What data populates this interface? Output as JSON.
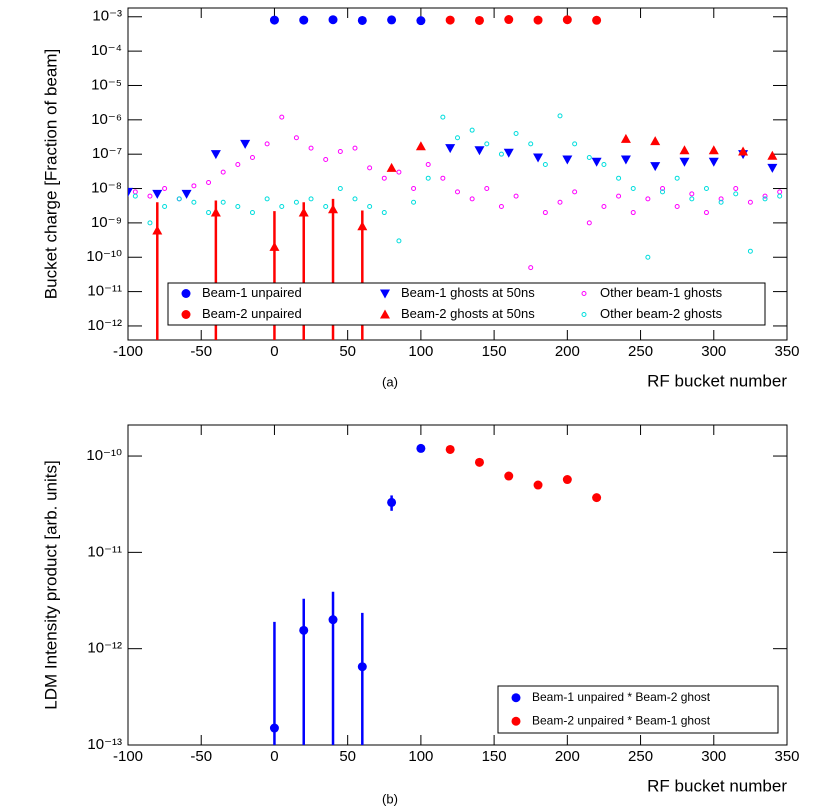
{
  "chart_data": [
    {
      "type": "scatter",
      "caption": "(a)",
      "x_label": "RF bucket number",
      "y_label": "Bucket charge [Fraction of beam]",
      "log_y": true,
      "xlim": [
        -100,
        350
      ],
      "ylim": [
        3.9e-13,
        0.0018
      ],
      "xticks": [
        -100,
        -50,
        0,
        50,
        100,
        150,
        200,
        250,
        300,
        350
      ],
      "yticks": [
        {
          "value": 1e-12,
          "label": "10⁻¹²"
        },
        {
          "value": 1e-11,
          "label": "10⁻¹¹"
        },
        {
          "value": 1e-10,
          "label": "10⁻¹⁰"
        },
        {
          "value": 1e-09,
          "label": "10⁻⁹"
        },
        {
          "value": 1e-08,
          "label": "10⁻⁸"
        },
        {
          "value": 1e-07,
          "label": "10⁻⁷"
        },
        {
          "value": 1e-06,
          "label": "10⁻⁶"
        },
        {
          "value": 1e-05,
          "label": "10⁻⁵"
        },
        {
          "value": 0.0001,
          "label": "10⁻⁴"
        },
        {
          "value": 0.001,
          "label": "10⁻³"
        }
      ],
      "legend": "bottom",
      "series": [
        {
          "name": "Beam-1 unpaired",
          "color": "#0000ff",
          "marker": "circle",
          "x": [
            0,
            20,
            40,
            60,
            80,
            100
          ],
          "values": [
            0.0008,
            0.0008,
            0.00082,
            0.00078,
            0.00081,
            0.00077
          ]
        },
        {
          "name": "Beam-2 unpaired",
          "color": "#ff0000",
          "marker": "circle",
          "x": [
            120,
            140,
            160,
            180,
            200,
            220
          ],
          "values": [
            0.0008,
            0.00078,
            0.00083,
            0.0008,
            0.00082,
            0.00079
          ]
        },
        {
          "name": "Beam-1 ghosts at 50ns",
          "color": "#0000ff",
          "marker": "down",
          "x": [
            -100,
            -80,
            -60,
            -40,
            -20,
            120,
            140,
            160,
            180,
            200,
            220,
            240,
            260,
            280,
            300,
            320,
            340
          ],
          "values": [
            8e-09,
            7e-09,
            7e-09,
            1e-07,
            2e-07,
            1.5e-07,
            1.3e-07,
            1.1e-07,
            8e-08,
            7e-08,
            6e-08,
            7e-08,
            4.5e-08,
            6e-08,
            6e-08,
            1e-07,
            4e-08
          ]
        },
        {
          "name": "Beam-2 ghosts at 50ns",
          "color": "#ff0000",
          "marker": "up",
          "x": [
            -80,
            -40,
            0,
            20,
            40,
            60,
            80,
            100,
            240,
            260,
            280,
            300,
            320,
            340
          ],
          "values": [
            6e-10,
            2e-09,
            2e-10,
            2e-09,
            2.5e-09,
            8e-10,
            4e-08,
            1.7e-07,
            2.8e-07,
            2.4e-07,
            1.3e-07,
            1.3e-07,
            1.2e-07,
            9e-08
          ],
          "errors": [
            3.4e-09,
            2.5e-09,
            2e-09,
            2e-09,
            2.5e-09,
            1.5e-09,
            0,
            0,
            0,
            0,
            0,
            0,
            0,
            0
          ]
        },
        {
          "name": "Other beam-1 ghosts",
          "color": "#ff00ff",
          "marker": "open",
          "x": [
            -95,
            -85,
            -75,
            -65,
            -55,
            -45,
            -35,
            -25,
            -15,
            -5,
            5,
            15,
            25,
            35,
            45,
            55,
            65,
            75,
            85,
            95,
            105,
            115,
            125,
            135,
            145,
            155,
            165,
            175,
            185,
            195,
            205,
            215,
            225,
            235,
            245,
            255,
            265,
            275,
            285,
            295,
            305,
            315,
            325,
            335,
            345
          ],
          "values": [
            8e-09,
            6e-09,
            1e-08,
            5e-09,
            1.2e-08,
            1.5e-08,
            3e-08,
            5e-08,
            8e-08,
            2e-07,
            1.2e-06,
            3e-07,
            1.5e-07,
            7e-08,
            1.2e-07,
            1.5e-07,
            4e-08,
            2e-08,
            3e-08,
            1e-08,
            5e-08,
            2e-08,
            8e-09,
            5e-09,
            1e-08,
            3e-09,
            6e-09,
            5e-11,
            2e-09,
            4e-09,
            8e-09,
            1e-09,
            3e-09,
            6e-09,
            2e-09,
            5e-09,
            1e-08,
            3e-09,
            7e-09,
            2e-09,
            5e-09,
            1e-08,
            4e-09,
            6e-09,
            8e-09
          ]
        },
        {
          "name": "Other beam-2 ghosts",
          "color": "#00dddd",
          "marker": "open",
          "x": [
            -95,
            -85,
            -75,
            -65,
            -55,
            -45,
            -35,
            -25,
            -15,
            -5,
            5,
            15,
            25,
            35,
            45,
            55,
            65,
            75,
            85,
            95,
            105,
            115,
            125,
            135,
            145,
            155,
            165,
            175,
            185,
            195,
            205,
            215,
            225,
            235,
            245,
            255,
            265,
            275,
            285,
            295,
            305,
            315,
            325,
            335,
            345
          ],
          "values": [
            6e-09,
            1e-09,
            3e-09,
            5e-09,
            4e-09,
            2e-09,
            4e-09,
            3e-09,
            2e-09,
            5e-09,
            3e-09,
            4e-09,
            5e-09,
            3e-09,
            1e-08,
            5e-09,
            3e-09,
            2e-09,
            3e-10,
            4e-09,
            2e-08,
            1.2e-06,
            3e-07,
            5e-07,
            2e-07,
            1e-07,
            4e-07,
            2e-07,
            5e-08,
            1.3e-06,
            2e-07,
            8e-08,
            5e-08,
            2e-08,
            1e-08,
            1e-10,
            8e-09,
            2e-08,
            5e-09,
            1e-08,
            4e-09,
            7e-09,
            1.5e-10,
            5e-09,
            6e-09
          ]
        }
      ]
    },
    {
      "type": "scatter",
      "caption": "(b)",
      "x_label": "RF bucket number",
      "y_label": "LDM Intensity product [arb. units]",
      "log_y": true,
      "xlim": [
        -100,
        350
      ],
      "ylim": [
        1e-13,
        2.1e-10
      ],
      "xticks": [
        -100,
        -50,
        0,
        50,
        100,
        150,
        200,
        250,
        300,
        350
      ],
      "yticks": [
        {
          "value": 1e-13,
          "label": "10⁻¹³"
        },
        {
          "value": 1e-12,
          "label": "10⁻¹²"
        },
        {
          "value": 1e-11,
          "label": "10⁻¹¹"
        },
        {
          "value": 1e-10,
          "label": "10⁻¹⁰"
        }
      ],
      "legend": "bottom-right",
      "series": [
        {
          "name": "Beam-1 unpaired * Beam-2 ghost",
          "color": "#0000ff",
          "marker": "circle",
          "x": [
            0,
            20,
            40,
            60,
            80,
            100
          ],
          "values": [
            1.5e-13,
            1.55e-12,
            2e-12,
            6.5e-13,
            3.3e-11,
            1.2e-10
          ],
          "errors": [
            1.75e-12,
            1.75e-12,
            1.9e-12,
            1.7e-12,
            6e-12,
            0
          ]
        },
        {
          "name": "Beam-2 unpaired * Beam-1 ghost",
          "color": "#ff0000",
          "marker": "circle",
          "x": [
            120,
            140,
            160,
            180,
            200,
            220
          ],
          "values": [
            1.17e-10,
            8.6e-11,
            6.2e-11,
            5e-11,
            5.7e-11,
            3.7e-11
          ]
        }
      ]
    }
  ]
}
